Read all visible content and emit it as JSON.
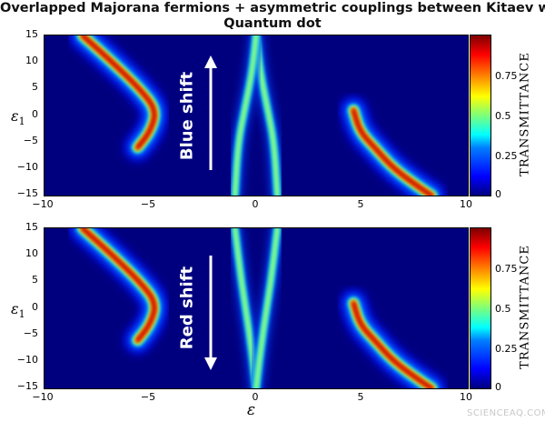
{
  "title_line1": "Overlapped Majorana fermions + asymmetric couplings between Kitaev wire and",
  "title_line2": "Quantum dot",
  "xlabel": "ε",
  "ylabel_symbol": "ε",
  "ylabel_subscript": "1",
  "x_ticks": [
    "−10",
    "−5",
    "0",
    "5",
    "10"
  ],
  "y_ticks": [
    "15",
    "10",
    "5",
    "0",
    "−5",
    "−10",
    "−15"
  ],
  "colorbar": {
    "label": "TRANSMITTANCE",
    "ticks": [
      "0.75",
      "0.5",
      "0.25",
      "0"
    ]
  },
  "annotations": {
    "top": "Blue shift",
    "bottom": "Red shift"
  },
  "watermark": "SCIENCEAQ.COM",
  "chart_data": [
    {
      "type": "heatmap",
      "title": "Overlapped Majorana fermions + asymmetric couplings between Kitaev wire and Quantum dot",
      "xlabel": "ε",
      "ylabel": "ε1",
      "xlim": [
        -10,
        10
      ],
      "ylim": [
        -15,
        15
      ],
      "colorbar_label": "TRANSMITTANCE",
      "colorbar_range": [
        0,
        1
      ],
      "annotation": "Blue shift",
      "arrow_direction": "up",
      "features": [
        {
          "name": "left branch",
          "points": [
            [
              -8.2,
              15
            ],
            [
              -6.8,
              10
            ],
            [
              -5.5,
              5
            ],
            [
              -4.7,
              1
            ],
            [
              -5.0,
              -3
            ],
            [
              -5.6,
              -6
            ]
          ],
          "peak": 1.0
        },
        {
          "name": "central crossing",
          "points": [
            [
              0,
              15
            ],
            [
              0.2,
              8
            ],
            [
              0.5,
              2
            ],
            [
              0.85,
              -5
            ],
            [
              1.0,
              -15
            ]
          ],
          "peak": 0.6
        },
        {
          "name": "central crossing mirror",
          "points": [
            [
              0,
              15
            ],
            [
              -0.2,
              8
            ],
            [
              -0.5,
              2
            ],
            [
              -0.85,
              -5
            ],
            [
              -1.0,
              -15
            ]
          ],
          "peak": 0.6
        },
        {
          "name": "right branch",
          "points": [
            [
              4.6,
              1
            ],
            [
              4.9,
              -3
            ],
            [
              5.6,
              -6
            ],
            [
              6.5,
              -10
            ],
            [
              7.9,
              -14
            ],
            [
              8.3,
              -15
            ]
          ],
          "peak": 1.0
        }
      ]
    },
    {
      "type": "heatmap",
      "xlabel": "ε",
      "ylabel": "ε1",
      "xlim": [
        -10,
        10
      ],
      "ylim": [
        -15,
        15
      ],
      "colorbar_label": "TRANSMITTANCE",
      "colorbar_range": [
        0,
        1
      ],
      "annotation": "Red shift",
      "arrow_direction": "down",
      "features": [
        {
          "name": "left branch",
          "points": [
            [
              -8.2,
              15
            ],
            [
              -6.8,
              10
            ],
            [
              -5.5,
              5
            ],
            [
              -4.7,
              1
            ],
            [
              -5.0,
              -3
            ],
            [
              -5.6,
              -6
            ]
          ],
          "peak": 1.0
        },
        {
          "name": "central crossing",
          "points": [
            [
              -1.0,
              15
            ],
            [
              -0.7,
              5
            ],
            [
              -0.3,
              -5
            ],
            [
              0,
              -15
            ]
          ],
          "peak": 0.6
        },
        {
          "name": "central crossing mirror",
          "points": [
            [
              1.0,
              15
            ],
            [
              0.7,
              5
            ],
            [
              0.3,
              -5
            ],
            [
              0,
              -15
            ]
          ],
          "peak": 0.6
        },
        {
          "name": "right branch",
          "points": [
            [
              4.6,
              1
            ],
            [
              4.9,
              -3
            ],
            [
              5.6,
              -6
            ],
            [
              6.5,
              -10
            ],
            [
              7.9,
              -14
            ],
            [
              8.3,
              -15
            ]
          ],
          "peak": 1.0
        }
      ]
    }
  ]
}
